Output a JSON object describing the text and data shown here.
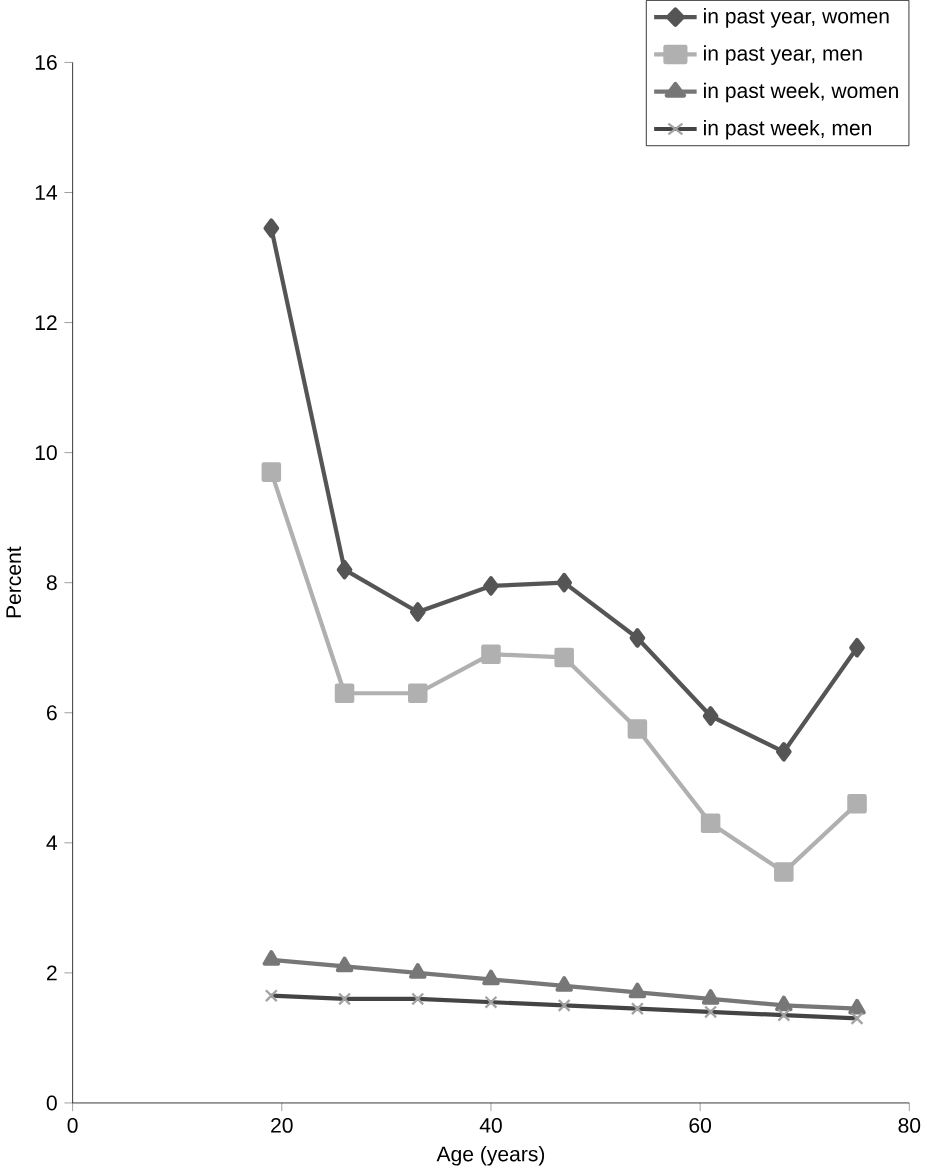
{
  "chart_data": {
    "type": "line",
    "xlabel": "Age (years)",
    "ylabel": "Percent",
    "x": [
      19,
      26,
      33,
      40,
      47,
      54,
      61,
      68,
      75
    ],
    "series": [
      {
        "name": "in past year, women",
        "color": "#555555",
        "marker": "diamond",
        "values": [
          13.45,
          8.2,
          7.55,
          7.95,
          8.0,
          7.15,
          5.95,
          5.4,
          7.0
        ]
      },
      {
        "name": "in past year, men",
        "color": "#b0b0b0",
        "marker": "square",
        "values": [
          9.7,
          6.3,
          6.3,
          6.9,
          6.85,
          5.75,
          4.3,
          3.55,
          4.6
        ]
      },
      {
        "name": "in past week, women",
        "color": "#777777",
        "marker": "triangle",
        "values": [
          2.2,
          2.1,
          2.0,
          1.9,
          1.8,
          1.7,
          1.6,
          1.5,
          1.45
        ]
      },
      {
        "name": "in past week, men",
        "color": "#444444",
        "marker": "cross",
        "values": [
          1.65,
          1.6,
          1.6,
          1.55,
          1.5,
          1.45,
          1.4,
          1.35,
          1.3
        ]
      }
    ],
    "xlim": [
      0,
      80
    ],
    "xticks": [
      0,
      20,
      40,
      60,
      80
    ],
    "ylim": [
      0,
      16
    ],
    "yticks": [
      0,
      2,
      4,
      6,
      8,
      10,
      12,
      14,
      16
    ],
    "grid": false,
    "legend": "top right"
  }
}
